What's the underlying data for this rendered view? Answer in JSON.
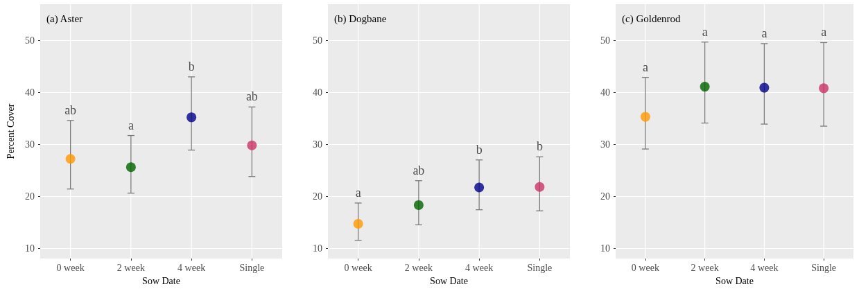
{
  "chart_data": [
    {
      "type": "scatter",
      "title": "(a) Aster",
      "xlabel": "Sow Date",
      "ylabel": "Percent Cover",
      "categories": [
        "0 week",
        "2 week",
        "4 week",
        "Single"
      ],
      "values": [
        27.2,
        25.6,
        35.2,
        29.8
      ],
      "errors": [
        [
          21.4,
          34.6
        ],
        [
          20.6,
          31.7
        ],
        [
          28.9,
          43.0
        ],
        [
          23.8,
          37.2
        ]
      ],
      "colors": [
        "#ff9900",
        "#006400",
        "#00008b",
        "#cc3366"
      ],
      "ylim": [
        8,
        57
      ],
      "yticks": [
        10,
        20,
        30,
        40,
        50
      ],
      "grid": true,
      "marker": "circle",
      "annotations": [
        {
          "text": "ab",
          "x": "0 week",
          "y": 34.6
        },
        {
          "text": "a",
          "x": "2 week",
          "y": 31.7
        },
        {
          "text": "b",
          "x": "4 week",
          "y": 43.0
        },
        {
          "text": "ab",
          "x": "Single",
          "y": 37.2
        }
      ]
    },
    {
      "type": "scatter",
      "title": "(b) Dogbane",
      "xlabel": "Sow Date",
      "categories": [
        "0 week",
        "2 week",
        "4 week",
        "Single"
      ],
      "values": [
        14.7,
        18.3,
        21.7,
        21.8
      ],
      "errors": [
        [
          11.5,
          18.7
        ],
        [
          14.5,
          23.0
        ],
        [
          17.4,
          27.0
        ],
        [
          17.2,
          27.6
        ]
      ],
      "colors": [
        "#ff9900",
        "#006400",
        "#00008b",
        "#cc3366"
      ],
      "ylim": [
        8,
        57
      ],
      "yticks": [
        10,
        20,
        30,
        40,
        50
      ],
      "grid": true,
      "marker": "circle",
      "annotations": [
        {
          "text": "a",
          "x": "0 week",
          "y": 18.7
        },
        {
          "text": "ab",
          "x": "2 week",
          "y": 23.0
        },
        {
          "text": "b",
          "x": "4 week",
          "y": 27.0
        },
        {
          "text": "b",
          "x": "Single",
          "y": 27.6
        }
      ]
    },
    {
      "type": "scatter",
      "title": "(c) Goldenrod",
      "xlabel": "Sow Date",
      "categories": [
        "0 week",
        "2 week",
        "4 week",
        "Single"
      ],
      "values": [
        35.3,
        41.1,
        40.9,
        40.8
      ],
      "errors": [
        [
          29.1,
          42.9
        ],
        [
          34.1,
          49.7
        ],
        [
          33.9,
          49.4
        ],
        [
          33.5,
          49.6
        ]
      ],
      "colors": [
        "#ff9900",
        "#006400",
        "#00008b",
        "#cc3366"
      ],
      "ylim": [
        8,
        57
      ],
      "yticks": [
        10,
        20,
        30,
        40,
        50
      ],
      "grid": true,
      "marker": "circle",
      "annotations": [
        {
          "text": "a",
          "x": "0 week",
          "y": 42.9
        },
        {
          "text": "a",
          "x": "2 week",
          "y": 49.7
        },
        {
          "text": "a",
          "x": "4 week",
          "y": 49.4
        },
        {
          "text": "a",
          "x": "Single",
          "y": 49.6
        }
      ]
    }
  ]
}
